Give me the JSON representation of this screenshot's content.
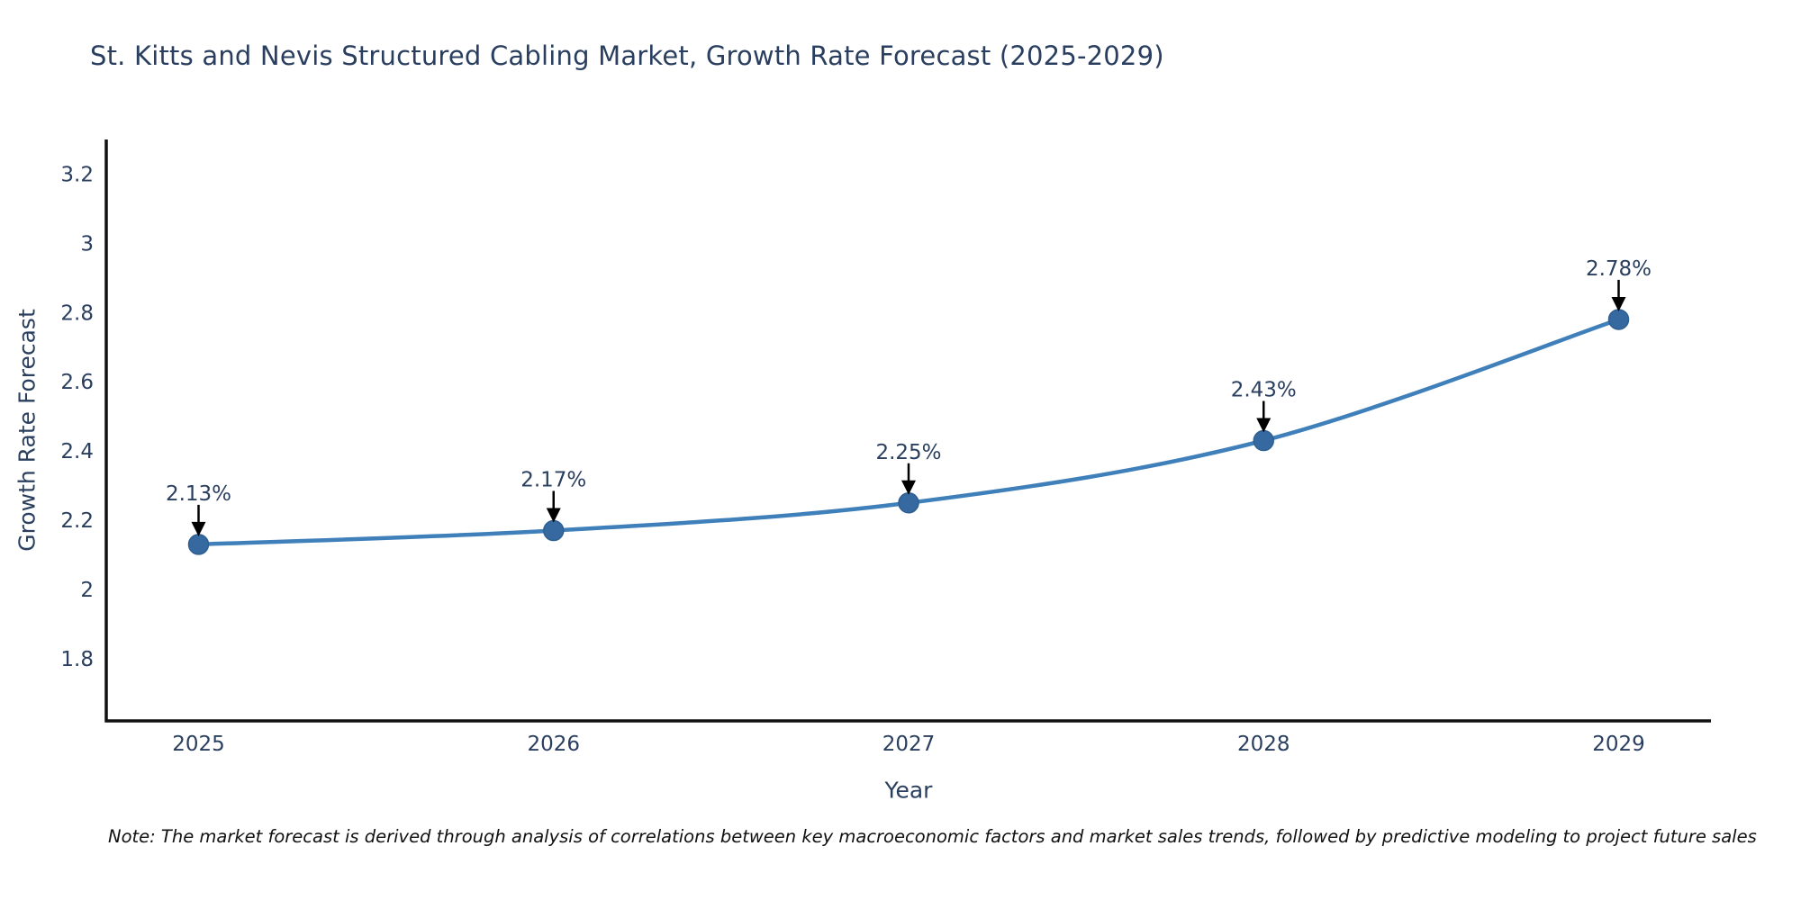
{
  "title": "St. Kitts and Nevis Structured Cabling Market, Growth Rate Forecast (2025-2029)",
  "note": "Note: The market forecast is derived through analysis of correlations between key macroeconomic factors and market sales trends, followed by predictive modeling to project future sales",
  "chart_data": {
    "type": "line",
    "title": "St. Kitts and Nevis Structured Cabling Market, Growth Rate Forecast (2025-2029)",
    "xlabel": "Year",
    "ylabel": "Growth Rate Forecast",
    "series_name": "Growth Rate Forecast",
    "x": [
      2025,
      2026,
      2027,
      2028,
      2029
    ],
    "x_tick_labels": [
      "2025",
      "2026",
      "2027",
      "2028",
      "2029"
    ],
    "values": [
      2.13,
      2.17,
      2.25,
      2.43,
      2.78
    ],
    "point_labels": [
      "2.13%",
      "2.17%",
      "2.25%",
      "2.43%",
      "2.78%"
    ],
    "y_ticks": [
      1.8,
      2,
      2.2,
      2.4,
      2.6,
      2.8,
      3,
      3.2
    ],
    "y_tick_labels": [
      "1.8",
      "2",
      "2.2",
      "2.4",
      "2.6",
      "2.8",
      "3",
      "3.2"
    ],
    "x_range": [
      2024.74,
      2029.26
    ],
    "y_range": [
      1.62,
      3.3
    ],
    "grid": false,
    "legend": null,
    "annotations_have_arrows": true,
    "colors": {
      "line": "#3f7fba",
      "marker": "#35699f",
      "marker_stroke": "#2f5f91",
      "arrow": "#000000",
      "annotation_text": "#2a3f5f",
      "tick_text": "#2a3f5f",
      "title_text": "#2a3f5f",
      "axis": "#111111",
      "note_text": "#111111",
      "background": "#ffffff"
    }
  }
}
